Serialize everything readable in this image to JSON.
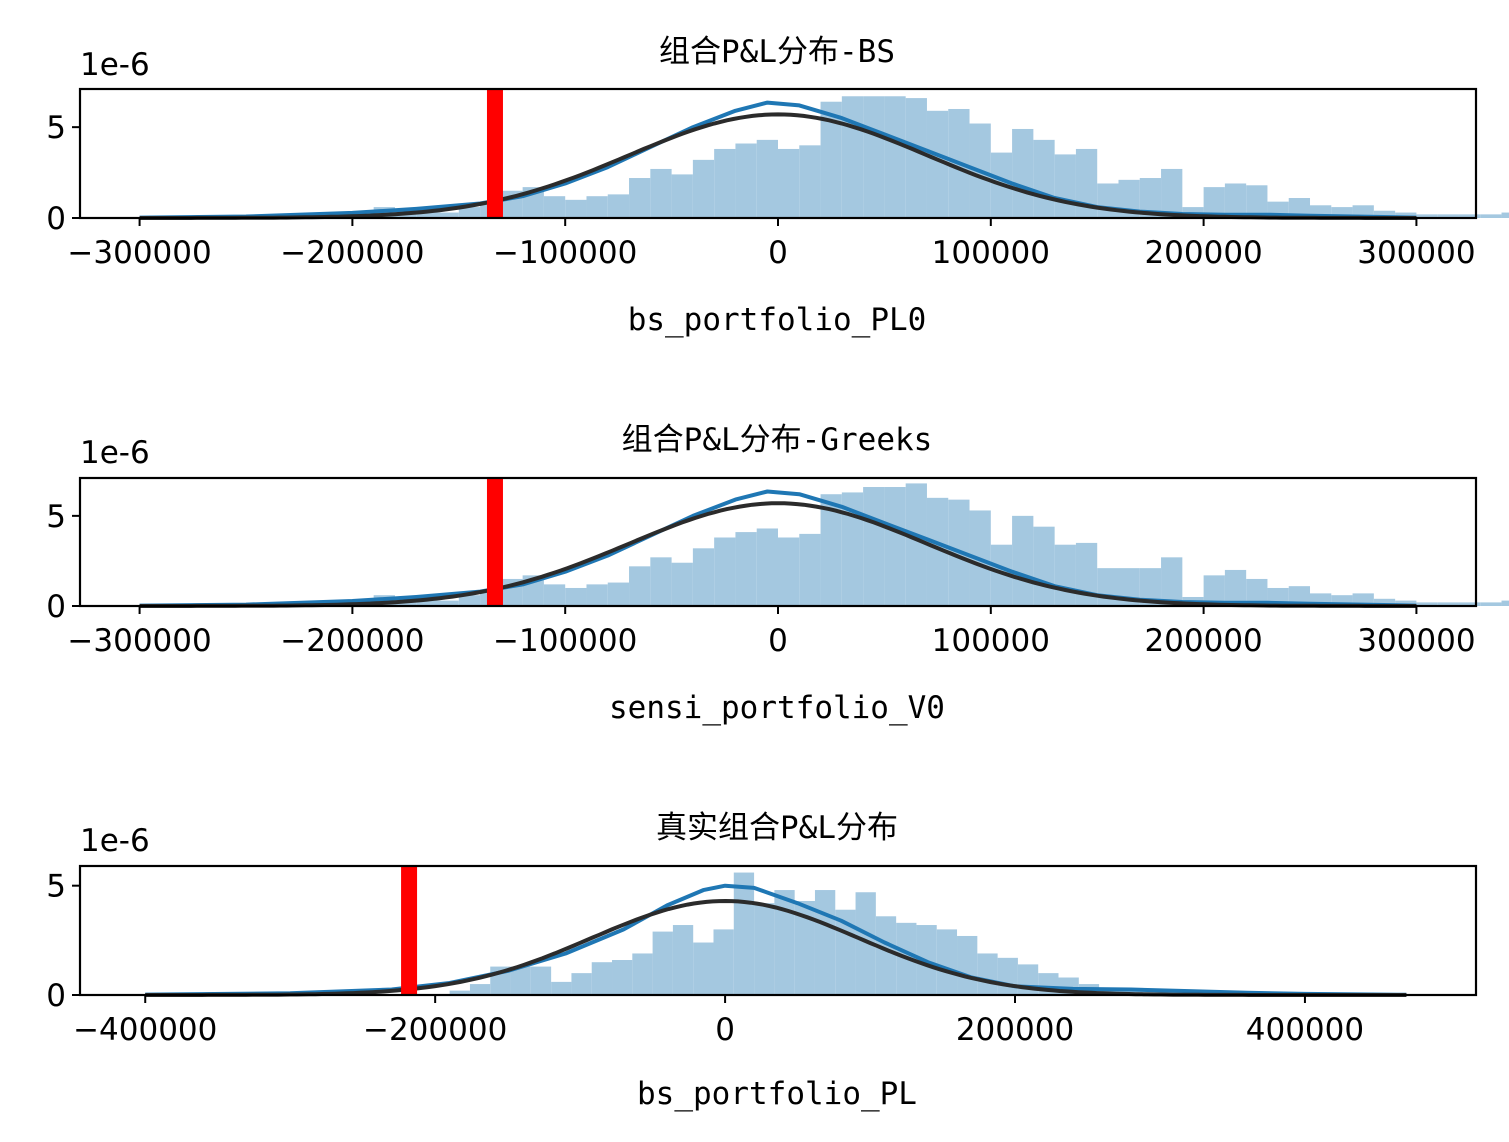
{
  "chart_data": [
    {
      "type": "histogram",
      "title": "组合P&L分布-BS",
      "xlabel": "bs_portfolio_PL0",
      "ylabel": "",
      "y_offset_label": "1e-6",
      "xlim": [
        -328000,
        328000
      ],
      "ylim": [
        0,
        7.1
      ],
      "xticks": [
        -300000,
        -200000,
        -100000,
        0,
        100000,
        200000,
        300000
      ],
      "xtick_labels": [
        "−300000",
        "−200000",
        "−100000",
        "0",
        "100000",
        "200000",
        "300000"
      ],
      "yticks": [
        0,
        5
      ],
      "ytick_labels": [
        "0",
        "5"
      ],
      "bin_width": 10000,
      "hist": {
        "x_start": -190000,
        "values": [
          0.6,
          0.5,
          0.4,
          0.3,
          0.6,
          0.9,
          1.5,
          1.7,
          1.2,
          1.0,
          1.2,
          1.3,
          2.2,
          2.7,
          2.4,
          3.2,
          3.8,
          4.1,
          4.3,
          3.8,
          4.0,
          6.4,
          6.7,
          6.7,
          6.7,
          6.6,
          5.9,
          6.0,
          5.2,
          3.6,
          4.9,
          4.3,
          3.5,
          3.8,
          1.9,
          2.1,
          2.2,
          2.7,
          0.6,
          1.7,
          1.9,
          1.8,
          0.9,
          1.1,
          0.7,
          0.6,
          0.7,
          0.4,
          0.3,
          0.2,
          0.2,
          0.2,
          0.2,
          0.3,
          0.3,
          0.2,
          0.2,
          0.2,
          0.2,
          0.1,
          0.1,
          0.1,
          0.1,
          0.1,
          0.1
        ]
      },
      "kde": {
        "name": "KDE",
        "color": "#1f77b4",
        "x": [
          -300000,
          -250000,
          -200000,
          -170000,
          -140000,
          -120000,
          -100000,
          -80000,
          -60000,
          -40000,
          -20000,
          -5000,
          10000,
          30000,
          50000,
          70000,
          90000,
          110000,
          130000,
          150000,
          170000,
          190000,
          210000,
          230000,
          250000,
          300000
        ],
        "y": [
          0.02,
          0.08,
          0.28,
          0.5,
          0.8,
          1.2,
          1.9,
          2.8,
          3.9,
          5.0,
          5.9,
          6.35,
          6.2,
          5.5,
          4.6,
          3.7,
          2.8,
          1.9,
          1.1,
          0.6,
          0.35,
          0.22,
          0.18,
          0.18,
          0.12,
          0.02
        ]
      },
      "normal_fit": {
        "name": "norm",
        "color": "#2b2b2b",
        "mean": 0,
        "std": 70000,
        "peak": 5.7
      },
      "var_line": {
        "x": -133000,
        "color": "#ff0000"
      }
    },
    {
      "type": "histogram",
      "title": "组合P&L分布-Greeks",
      "xlabel": "sensi_portfolio_V0",
      "ylabel": "",
      "y_offset_label": "1e-6",
      "xlim": [
        -328000,
        328000
      ],
      "ylim": [
        0,
        7.1
      ],
      "xticks": [
        -300000,
        -200000,
        -100000,
        0,
        100000,
        200000,
        300000
      ],
      "xtick_labels": [
        "−300000",
        "−200000",
        "−100000",
        "0",
        "100000",
        "200000",
        "300000"
      ],
      "yticks": [
        0,
        5
      ],
      "ytick_labels": [
        "0",
        "5"
      ],
      "bin_width": 10000,
      "hist": {
        "x_start": -190000,
        "values": [
          0.6,
          0.5,
          0.4,
          0.3,
          0.6,
          0.9,
          1.5,
          1.7,
          1.2,
          1.0,
          1.2,
          1.3,
          2.2,
          2.7,
          2.4,
          3.2,
          3.8,
          4.1,
          4.3,
          3.8,
          4.0,
          6.2,
          6.3,
          6.6,
          6.6,
          6.8,
          6.0,
          5.9,
          5.3,
          3.4,
          5.0,
          4.4,
          3.4,
          3.5,
          2.1,
          2.1,
          2.1,
          2.7,
          0.5,
          1.7,
          2.0,
          1.5,
          1.0,
          1.1,
          0.7,
          0.6,
          0.7,
          0.4,
          0.3,
          0.2,
          0.2,
          0.2,
          0.2,
          0.3,
          0.3,
          0.2,
          0.2,
          0.2,
          0.2,
          0.1,
          0.1,
          0.1,
          0.1,
          0.1,
          0.1
        ]
      },
      "kde": {
        "name": "KDE",
        "color": "#1f77b4",
        "x": [
          -300000,
          -250000,
          -200000,
          -170000,
          -140000,
          -120000,
          -100000,
          -80000,
          -60000,
          -40000,
          -20000,
          -5000,
          10000,
          30000,
          50000,
          70000,
          90000,
          110000,
          130000,
          150000,
          170000,
          190000,
          210000,
          230000,
          250000,
          300000
        ],
        "y": [
          0.02,
          0.08,
          0.28,
          0.5,
          0.8,
          1.2,
          1.9,
          2.8,
          3.9,
          5.0,
          5.9,
          6.35,
          6.2,
          5.5,
          4.6,
          3.7,
          2.8,
          1.9,
          1.1,
          0.6,
          0.35,
          0.22,
          0.18,
          0.18,
          0.12,
          0.02
        ]
      },
      "normal_fit": {
        "name": "norm",
        "color": "#2b2b2b",
        "mean": 0,
        "std": 70000,
        "peak": 5.7
      },
      "var_line": {
        "x": -133000,
        "color": "#ff0000"
      }
    },
    {
      "type": "histogram",
      "title": "真实组合P&L分布",
      "xlabel": "bs_portfolio_PL",
      "ylabel": "",
      "y_offset_label": "1e-6",
      "xlim": [
        -445000,
        518000
      ],
      "ylim": [
        0,
        5.9
      ],
      "xticks": [
        -400000,
        -200000,
        0,
        200000,
        400000
      ],
      "xtick_labels": [
        "−400000",
        "−200000",
        "0",
        "200000",
        "400000"
      ],
      "yticks": [
        0,
        5
      ],
      "ytick_labels": [
        "0",
        "5"
      ],
      "bin_width": 14000,
      "hist": {
        "x_start": -190000,
        "values": [
          0.2,
          0.5,
          1.3,
          1.3,
          1.3,
          0.6,
          1.0,
          1.5,
          1.6,
          1.9,
          2.9,
          3.2,
          2.4,
          3.0,
          5.6,
          4.2,
          4.8,
          4.3,
          4.8,
          3.9,
          4.7,
          3.6,
          3.3,
          3.2,
          3.0,
          2.7,
          1.9,
          1.7,
          1.4,
          1.0,
          0.8,
          0.5,
          0.3,
          0.2,
          0.2,
          0.2,
          0.1,
          0.1,
          0.1,
          0.1,
          0.1,
          0.1,
          0.1,
          0.1,
          0.1
        ]
      },
      "kde": {
        "name": "KDE",
        "color": "#1f77b4",
        "x": [
          -400000,
          -300000,
          -230000,
          -190000,
          -150000,
          -110000,
          -70000,
          -40000,
          -15000,
          0,
          20000,
          50000,
          80000,
          110000,
          140000,
          170000,
          200000,
          240000,
          280000,
          320000,
          360000,
          400000,
          470000
        ],
        "y": [
          0.02,
          0.08,
          0.25,
          0.55,
          1.1,
          1.9,
          3.0,
          4.1,
          4.8,
          5.0,
          4.9,
          4.2,
          3.4,
          2.4,
          1.5,
          0.8,
          0.4,
          0.28,
          0.25,
          0.18,
          0.1,
          0.05,
          0.01
        ]
      },
      "normal_fit": {
        "name": "norm",
        "color": "#2b2b2b",
        "mean": 0,
        "std": 92000,
        "peak": 4.3
      },
      "var_line": {
        "x": -218000,
        "color": "#ff0000"
      }
    }
  ]
}
